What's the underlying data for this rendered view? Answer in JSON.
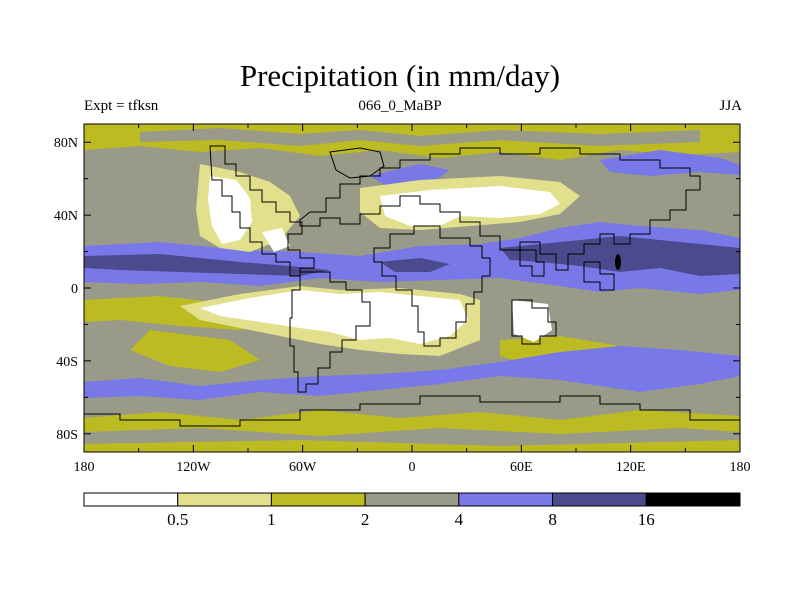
{
  "title": "Precipitation (in mm/day)",
  "subtitle_left": "Expt = tfksn",
  "subtitle_center": "066_0_MaBP",
  "subtitle_right": "JJA",
  "axes": {
    "x_ticks": [
      {
        "lon": -180,
        "label": "180"
      },
      {
        "lon": -120,
        "label": "120W"
      },
      {
        "lon": -60,
        "label": "60W"
      },
      {
        "lon": 0,
        "label": "0"
      },
      {
        "lon": 60,
        "label": "60E"
      },
      {
        "lon": 120,
        "label": "120E"
      },
      {
        "lon": 180,
        "label": "180"
      }
    ],
    "y_ticks": [
      {
        "lat": 80,
        "label": "80N"
      },
      {
        "lat": 40,
        "label": "40N"
      },
      {
        "lat": 0,
        "label": "0"
      },
      {
        "lat": -40,
        "label": "40S"
      },
      {
        "lat": -80,
        "label": "80S"
      }
    ],
    "lon_range": [
      -180,
      180
    ],
    "lat_range": [
      -90,
      90
    ]
  },
  "colorbar": {
    "levels": [
      "0.5",
      "1",
      "2",
      "4",
      "8",
      "16"
    ],
    "colors": [
      "#ffffff",
      "#e2e08c",
      "#bdbb22",
      "#9a9a88",
      "#7878e8",
      "#4a4a8c",
      "#000000"
    ]
  },
  "background_color": "#9a9a88"
}
